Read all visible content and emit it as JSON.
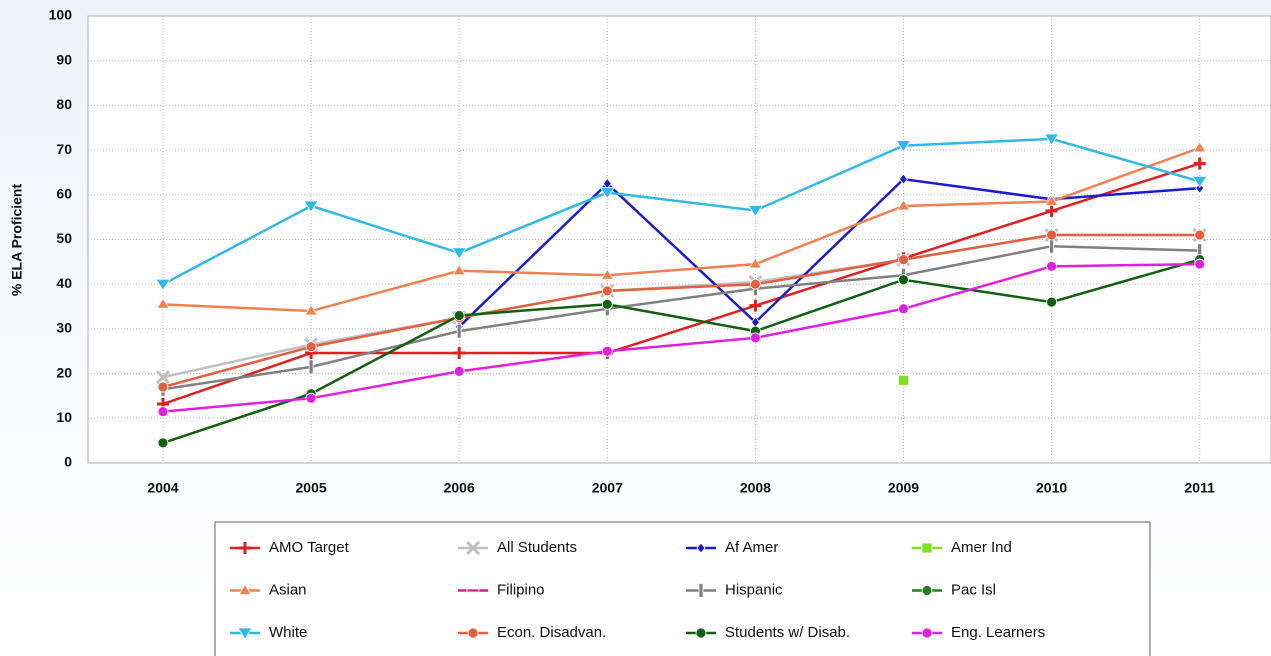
{
  "chart_data": {
    "type": "line",
    "ylabel": "% ELA Proficient",
    "categories": [
      "2004",
      "2005",
      "2006",
      "2007",
      "2008",
      "2009",
      "2010",
      "2011"
    ],
    "ylim": [
      0,
      100
    ],
    "yticks": [
      0,
      10,
      20,
      30,
      40,
      50,
      60,
      70,
      80,
      90,
      100
    ],
    "grid": true,
    "series": [
      {
        "name": "AMO Target",
        "color": "#e02020",
        "marker": "plus",
        "values": [
          13.2,
          24.6,
          24.6,
          24.6,
          35.2,
          45.8,
          56.4,
          67
        ]
      },
      {
        "name": "All Students",
        "color": "#c0c0c0",
        "marker": "x",
        "values": [
          19.2,
          26.5,
          32.5,
          38.5,
          40.5,
          45.5,
          51,
          51
        ]
      },
      {
        "name": "Af Amer",
        "color": "#1a1ad0",
        "marker": "diamond",
        "values": [
          null,
          null,
          30.5,
          62.5,
          31.5,
          63.5,
          59,
          61.5
        ]
      },
      {
        "name": "Amer Ind",
        "color": "#80e020",
        "marker": "square",
        "values": [
          null,
          null,
          null,
          null,
          null,
          18.5,
          null,
          null
        ]
      },
      {
        "name": "Asian",
        "color": "#f08050",
        "marker": "triangle",
        "values": [
          35.5,
          34,
          43,
          42,
          44.5,
          57.5,
          58.5,
          70.5
        ]
      },
      {
        "name": "Filipino",
        "color": "#d02090",
        "marker": "dash",
        "values": [
          null,
          null,
          null,
          null,
          null,
          null,
          null,
          null
        ]
      },
      {
        "name": "Hispanic",
        "color": "#808080",
        "marker": "bar",
        "values": [
          16.5,
          21.5,
          29.5,
          34.5,
          39,
          42,
          48.5,
          47.5
        ]
      },
      {
        "name": "Pac Isl",
        "color": "#208020",
        "marker": "circle",
        "values": [
          null,
          null,
          null,
          null,
          null,
          null,
          null,
          null
        ]
      },
      {
        "name": "White",
        "color": "#30b8e8",
        "marker": "triangle-down",
        "values": [
          40,
          57.5,
          47,
          60.5,
          56.5,
          71,
          72.5,
          63
        ]
      },
      {
        "name": "Econ. Disadvan.",
        "color": "#e06040",
        "marker": "circle",
        "values": [
          17,
          26,
          32.5,
          38.5,
          40,
          45.5,
          51,
          51
        ]
      },
      {
        "name": "Students w/ Disab.",
        "color": "#106010",
        "marker": "circle",
        "values": [
          4.5,
          15.5,
          33,
          35.5,
          29.5,
          41,
          36,
          45.5
        ]
      },
      {
        "name": "Eng. Learners",
        "color": "#e020e0",
        "marker": "circle",
        "values": [
          11.5,
          14.5,
          20.5,
          25,
          28,
          34.5,
          44,
          44.5
        ]
      }
    ]
  }
}
